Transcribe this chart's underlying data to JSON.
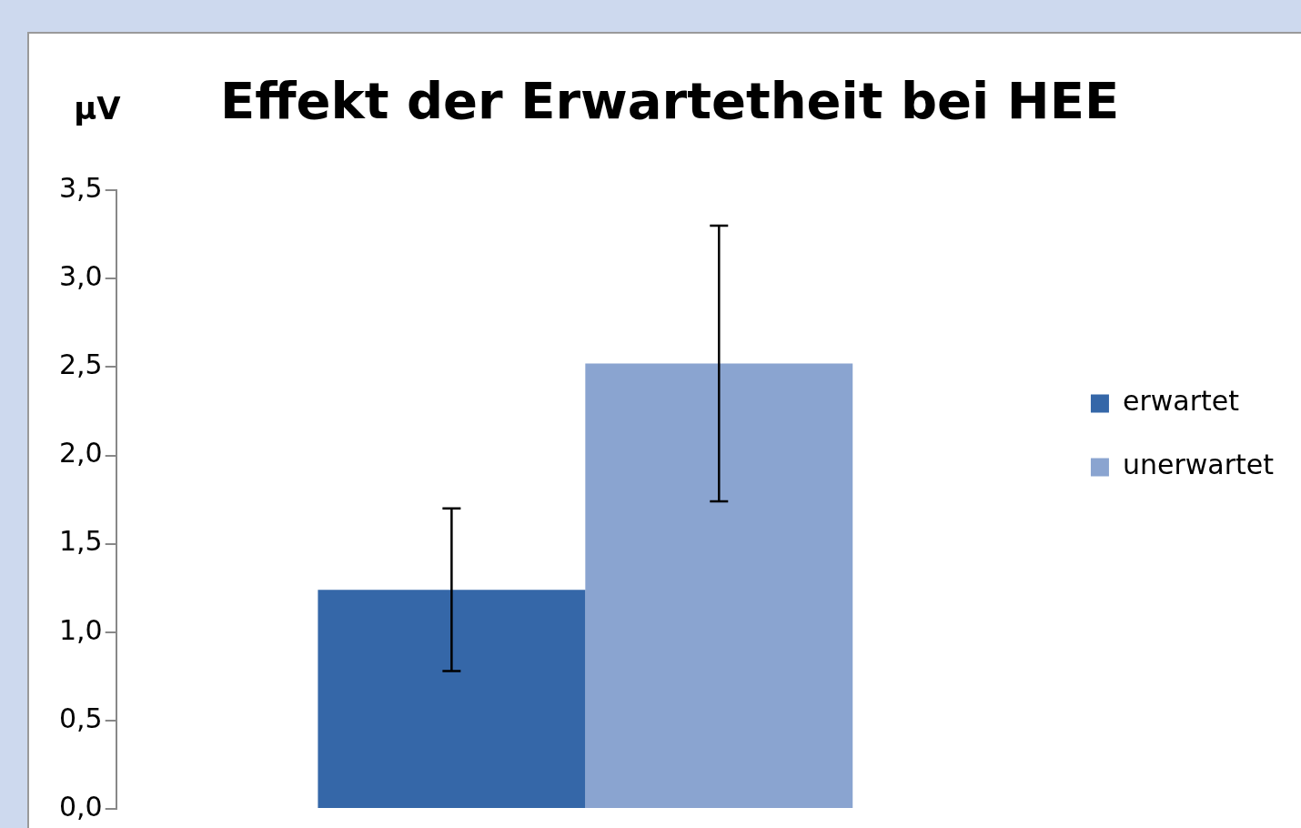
{
  "chart_data": {
    "type": "bar",
    "title": "Effekt der Erwartetheit bei HEE",
    "ylabel": "µV",
    "categories": [
      null
    ],
    "series": [
      {
        "name": "erwartet",
        "color": "#3567a8",
        "values": [
          1.24
        ],
        "errors": [
          0.46
        ]
      },
      {
        "name": "unerwartet",
        "color": "#8aa4d0",
        "values": [
          2.52
        ],
        "errors": [
          0.78
        ]
      }
    ],
    "ylim": [
      0,
      3.5
    ],
    "yticks": [
      {
        "value": 0,
        "label": "0,0"
      },
      {
        "value": 0.5,
        "label": "0,5"
      },
      {
        "value": 1,
        "label": "1,0"
      },
      {
        "value": 1.5,
        "label": "1,5"
      },
      {
        "value": 2,
        "label": "2,0"
      },
      {
        "value": 2.5,
        "label": "2,5"
      },
      {
        "value": 3,
        "label": "3,0"
      },
      {
        "value": 3.5,
        "label": "3,5"
      }
    ],
    "tick_labels": "y",
    "grid": false,
    "legend": "right"
  }
}
